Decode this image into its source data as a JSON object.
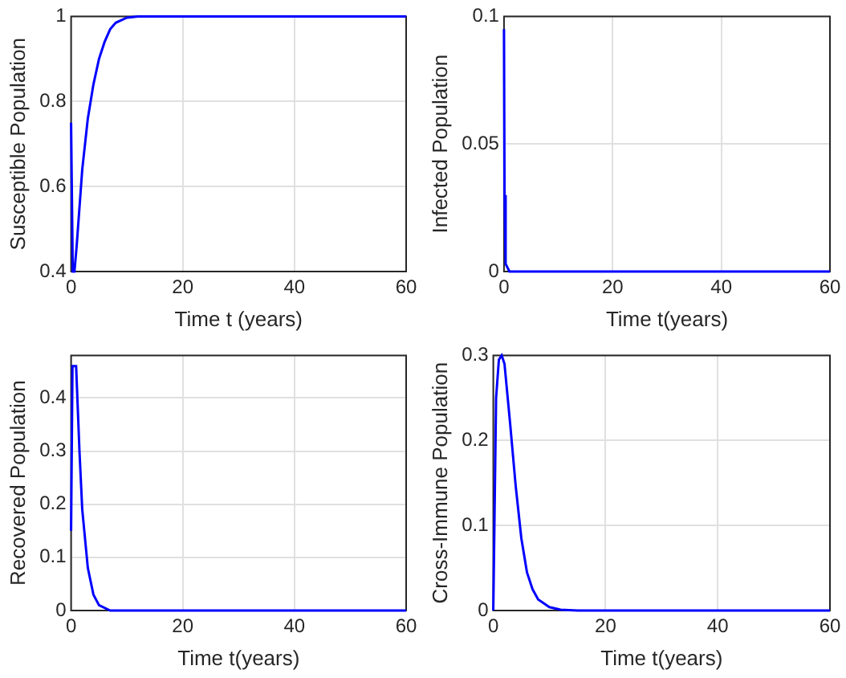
{
  "chart_data": [
    {
      "type": "line",
      "xlabel": "Time t (years)",
      "ylabel": "Susceptible Population",
      "x": [
        0,
        0.3,
        0.6,
        1,
        2,
        3,
        3.5,
        4,
        5,
        6,
        7,
        8,
        10,
        12,
        60
      ],
      "series": [
        {
          "color": "#0000ff",
          "values": [
            0.75,
            0.4,
            0.4,
            0.46,
            0.64,
            0.76,
            0.8,
            0.84,
            0.9,
            0.94,
            0.97,
            0.985,
            0.997,
            1,
            1
          ]
        }
      ],
      "xlim": [
        0,
        60
      ],
      "xticks": [
        0,
        20,
        40,
        60
      ],
      "ylim": [
        0.4,
        1
      ],
      "yticks": [
        0.4,
        0.6,
        0.8,
        1
      ],
      "grid": true
    },
    {
      "type": "line",
      "xlabel": "Time t(years)",
      "ylabel": "Infected Population",
      "x": [
        0,
        0.1,
        0.3,
        1,
        60
      ],
      "series": [
        {
          "color": "#0000ff",
          "values": [
            0.095,
            0.03,
            0.003,
            0,
            0
          ]
        }
      ],
      "xlim": [
        0,
        60
      ],
      "xticks": [
        0,
        20,
        40,
        60
      ],
      "ylim": [
        0,
        0.1
      ],
      "yticks": [
        0,
        0.05,
        0.1
      ],
      "grid": true
    },
    {
      "type": "line",
      "xlabel": "Time t(years)",
      "ylabel": "Recovered Population",
      "x": [
        0,
        0.25,
        0.9,
        1.5,
        2,
        3,
        4,
        5,
        7,
        60
      ],
      "series": [
        {
          "color": "#0000ff",
          "values": [
            0.15,
            0.46,
            0.46,
            0.3,
            0.19,
            0.08,
            0.03,
            0.01,
            0,
            0
          ]
        }
      ],
      "xlim": [
        0,
        60
      ],
      "xticks": [
        0,
        20,
        40,
        60
      ],
      "ylim": [
        0,
        0.48
      ],
      "yticks": [
        0,
        0.1,
        0.2,
        0.3,
        0.4
      ],
      "grid": true
    },
    {
      "type": "line",
      "xlabel": "Time t(years)",
      "ylabel": "Cross-Immune Population",
      "x": [
        0,
        0.5,
        1,
        1.5,
        2,
        3,
        4,
        5,
        6,
        7,
        8,
        10,
        12,
        15,
        60
      ],
      "series": [
        {
          "color": "#0000ff",
          "values": [
            0,
            0.25,
            0.295,
            0.3,
            0.29,
            0.22,
            0.146,
            0.085,
            0.045,
            0.025,
            0.013,
            0.004,
            0.001,
            0,
            0
          ]
        }
      ],
      "xlim": [
        0,
        60
      ],
      "xticks": [
        0,
        20,
        40,
        60
      ],
      "ylim": [
        0,
        0.3
      ],
      "yticks": [
        0,
        0.1,
        0.2,
        0.3
      ],
      "grid": true
    }
  ]
}
